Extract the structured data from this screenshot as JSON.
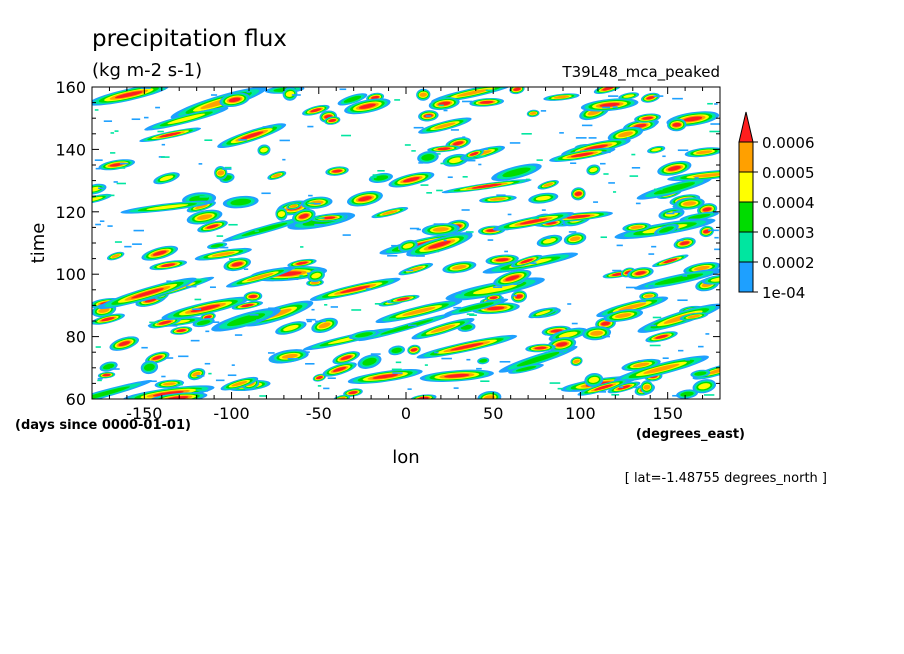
{
  "chart_data": {
    "type": "heatmap",
    "title": "precipitation flux",
    "units": "(kg m-2 s-1)",
    "run_id": "T39L48_mca_peaked",
    "xlabel": "lon",
    "ylabel": "time",
    "x_units": "(degrees_east)",
    "y_units": "(days since 0000-01-01)",
    "annotation": "[ lat=-1.48755 degrees_north ]",
    "xlim": [
      -180,
      180
    ],
    "ylim": [
      60,
      160
    ],
    "x_ticks": [
      -150,
      -100,
      -50,
      0,
      50,
      100,
      150
    ],
    "x_tick_labels": [
      "-150",
      "-100",
      "-50",
      "0",
      "50",
      "100",
      "150"
    ],
    "y_ticks": [
      60,
      80,
      100,
      120,
      140,
      160
    ],
    "y_tick_labels": [
      "60",
      "80",
      "100",
      "120",
      "140",
      "160"
    ],
    "colorbar": {
      "levels": [
        0.0001,
        0.0002,
        0.0003,
        0.0004,
        0.0005,
        0.0006
      ],
      "labels": [
        "1e-04",
        "0.0002",
        "0.0003",
        "0.0004",
        "0.0005",
        "0.0006"
      ],
      "colors": [
        "#1ea0ff",
        "#00e6a0",
        "#00dc00",
        "#ffff00",
        "#ffa000",
        "#ff1e1e"
      ],
      "extend": "max"
    },
    "grid": false
  }
}
